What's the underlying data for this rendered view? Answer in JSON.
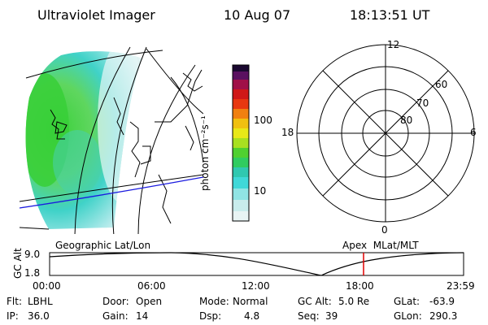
{
  "header": {
    "title": "Ultraviolet Imager",
    "date": "10 Aug 07",
    "time": "18:13:51 UT"
  },
  "colorbar": {
    "unit_label": "photon cm⁻²s⁻¹",
    "tick_100": "100",
    "tick_10": "10"
  },
  "polar": {
    "mlt_top": "12",
    "mlt_right": "6",
    "mlt_bottom": "0",
    "mlt_left": "18",
    "lat_60": "60",
    "lat_70": "70",
    "lat_80": "80"
  },
  "timeline": {
    "left_caption": "Geographic Lat/Lon",
    "right_caption": "Apex  MLat/MLT",
    "axis_label": "GC Alt",
    "y_high": "9.0",
    "y_low": "1.8",
    "ticks": [
      "00:00",
      "06:00",
      "12:00",
      "18:00",
      "23:59"
    ],
    "current_time_hours": 18.2
  },
  "info": {
    "filter_label": "Flt:",
    "filter_value": "LBHL",
    "ip_label": "IP:",
    "ip_value": "36.0",
    "door_label": "Door:",
    "door_value": "Open",
    "gain_label": "Gain:",
    "gain_value": "14",
    "mode_label": "Mode:",
    "mode_value": "Normal",
    "dsp_label": "Dsp:",
    "dsp_value": "4.8",
    "gcalt_label": "GC Alt:",
    "gcalt_value": "5.0 Re",
    "seq_label": "Seq:",
    "seq_value": "39",
    "glat_label": "GLat:",
    "glat_value": "-63.9",
    "glon_label": "GLon:",
    "glon_value": "290.3"
  }
}
